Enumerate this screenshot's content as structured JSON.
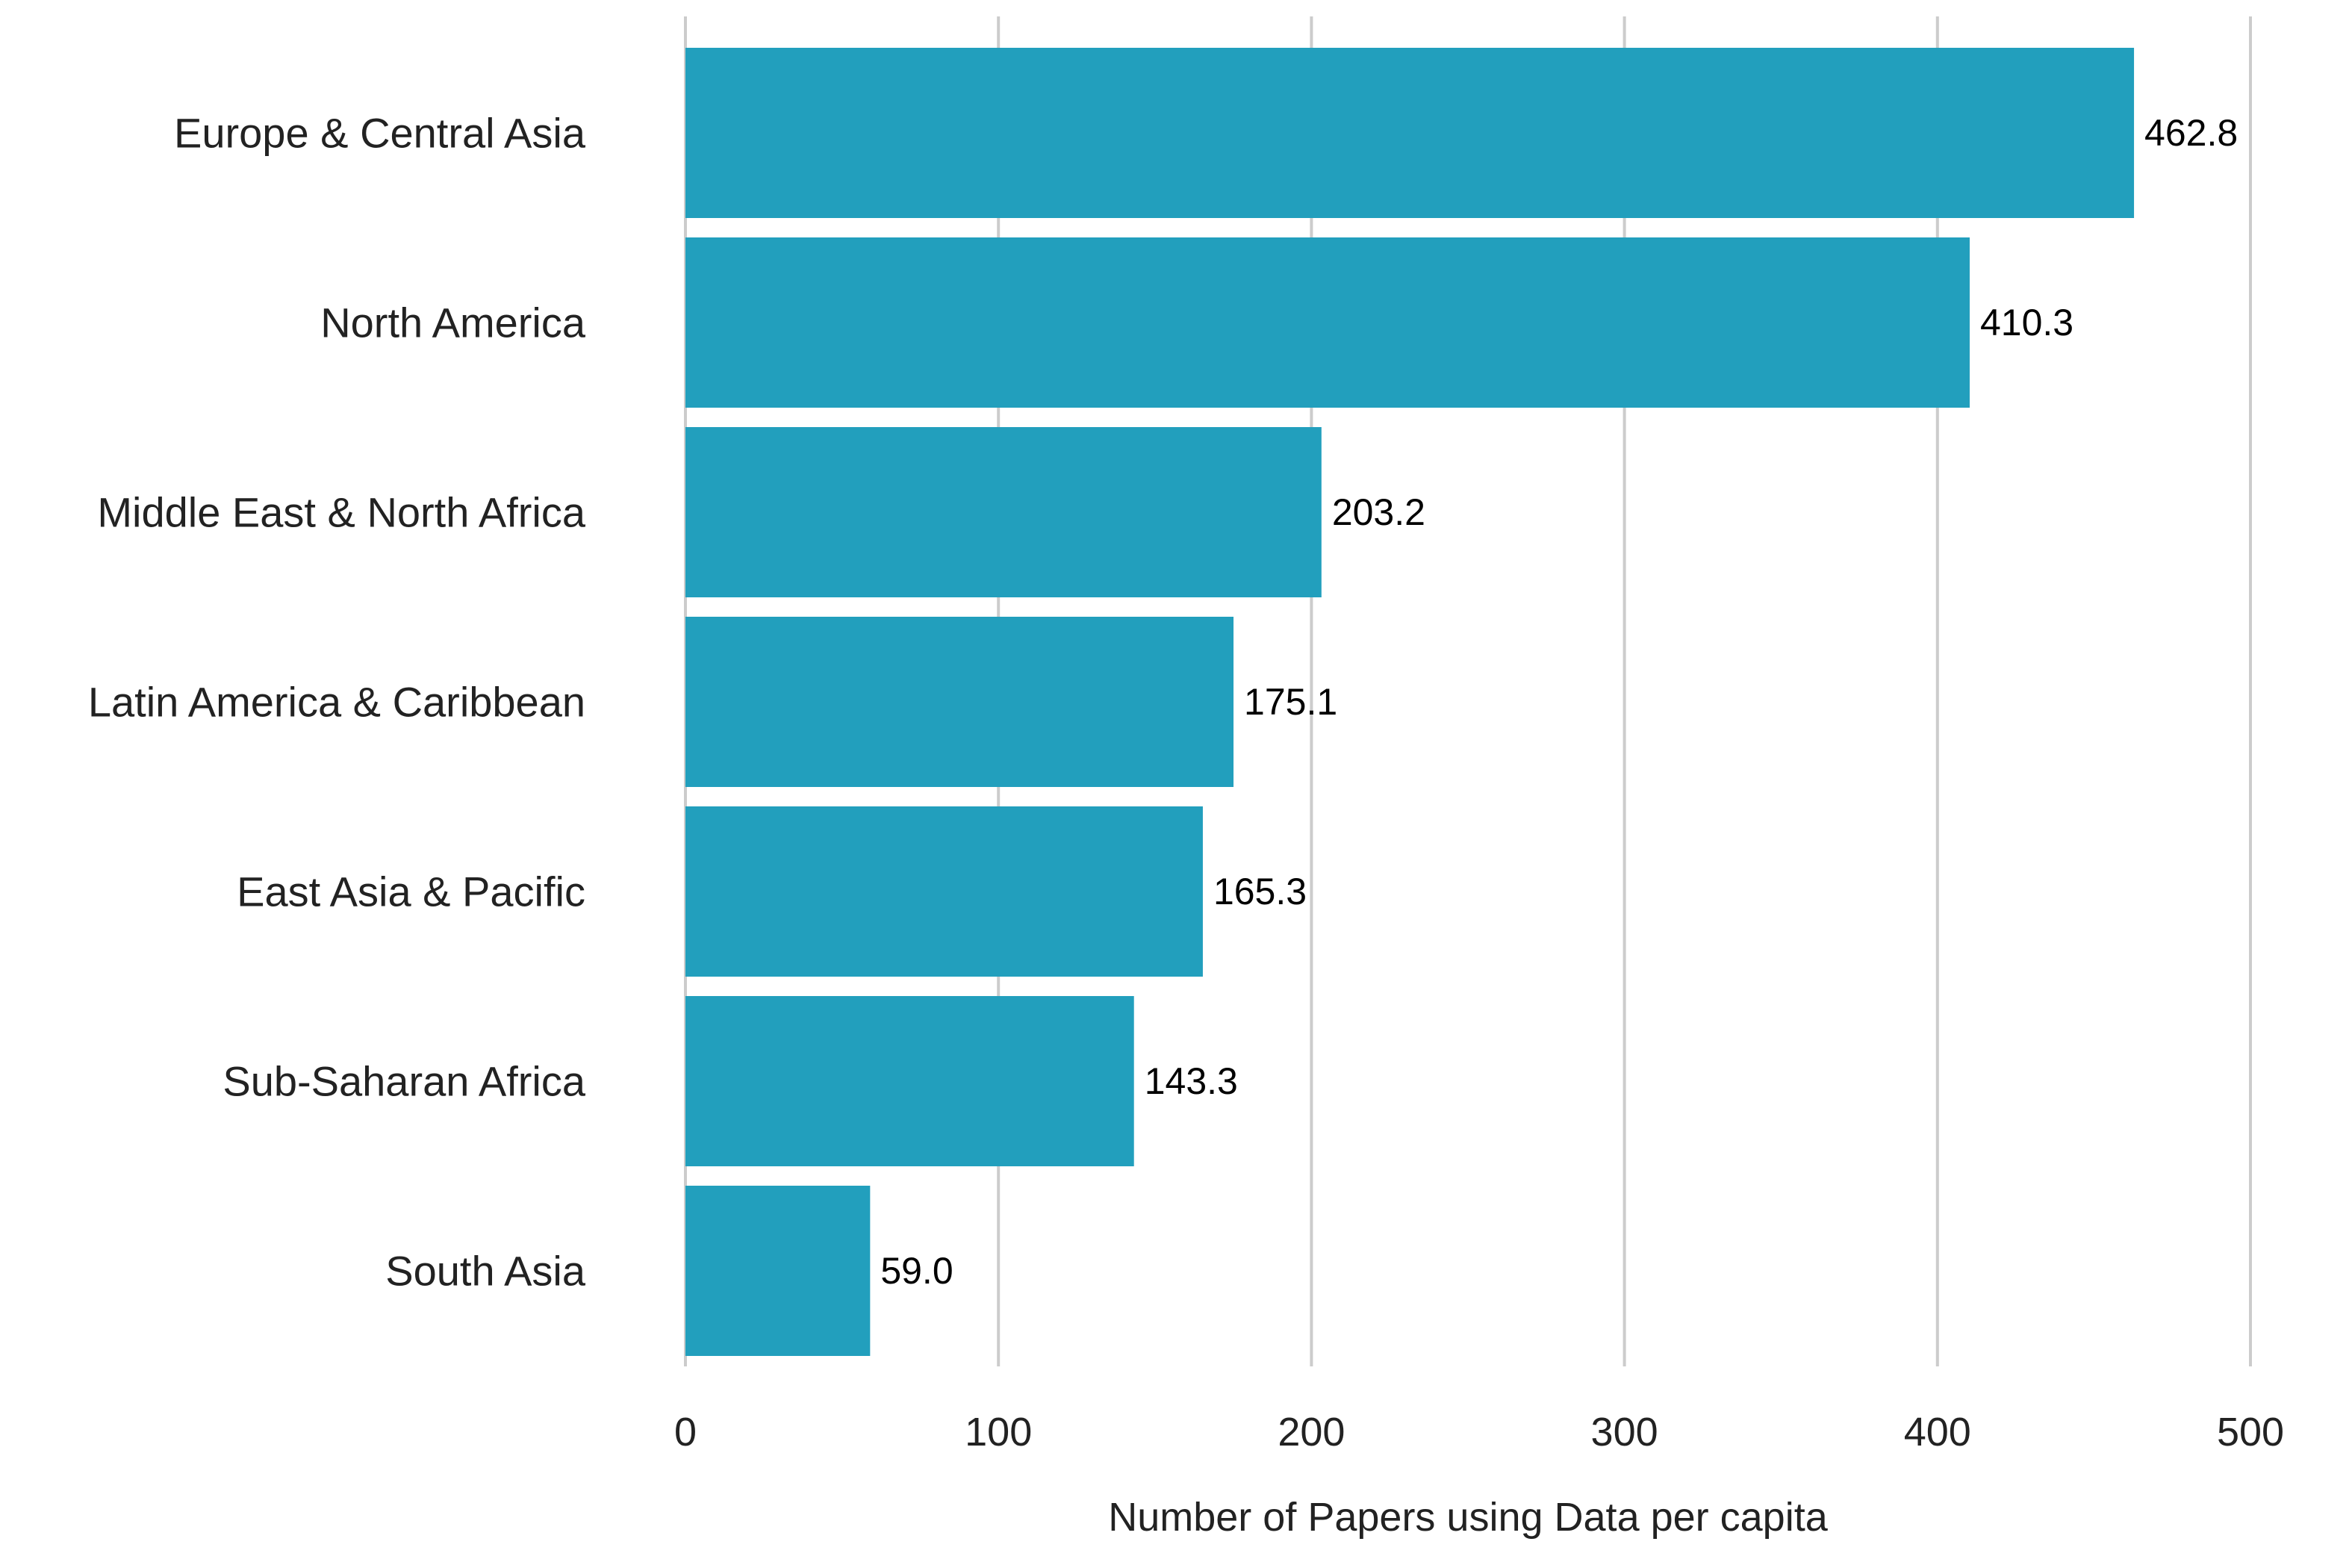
{
  "colors": {
    "bar": "#229fbd",
    "grid": "#cccccc",
    "text": "#222222"
  },
  "chart_data": {
    "type": "bar",
    "orientation": "horizontal",
    "categories": [
      "Europe & Central Asia",
      "North America",
      "Middle East & North Africa",
      "Latin America & Caribbean",
      "East Asia & Pacific",
      "Sub-Saharan Africa",
      "South Asia"
    ],
    "values": [
      462.8,
      410.3,
      203.2,
      175.1,
      165.3,
      143.3,
      59.0
    ],
    "value_labels": [
      "462.8",
      "410.3",
      "203.2",
      "175.1",
      "165.3",
      "143.3",
      "59.0"
    ],
    "title": "",
    "xlabel": "Number of Papers using Data per capita",
    "ylabel": "",
    "xlim": [
      0,
      500
    ],
    "ticks": [
      "0",
      "100",
      "200",
      "300",
      "400",
      "500"
    ],
    "tick_values": [
      0,
      100,
      200,
      300,
      400,
      500
    ],
    "grid": "vertical",
    "legend": "none"
  }
}
